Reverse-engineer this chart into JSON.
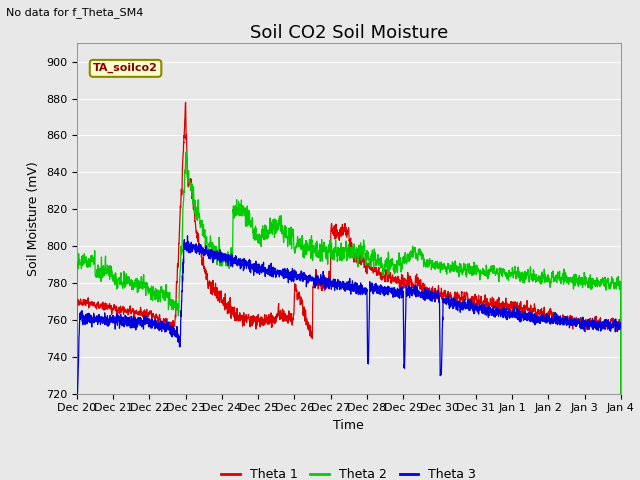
{
  "title": "Soil CO2 Soil Moisture",
  "top_left_note": "No data for f_Theta_SM4",
  "ylabel": "Soil Moisture (mV)",
  "xlabel": "Time",
  "ylim": [
    720,
    910
  ],
  "yticks": [
    720,
    740,
    760,
    780,
    800,
    820,
    840,
    860,
    880,
    900
  ],
  "xtick_labels": [
    "Dec 20",
    "Dec 21",
    "Dec 22",
    "Dec 23",
    "Dec 24",
    "Dec 25",
    "Dec 26",
    "Dec 27",
    "Dec 28",
    "Dec 29",
    "Dec 30",
    "Dec 31",
    "Jan 1",
    "Jan 2",
    "Jan 3",
    "Jan 4"
  ],
  "legend_box_label": "TA_soilco2",
  "legend_box_color": "#ffffcc",
  "legend_box_border": "#888800",
  "colors": {
    "theta1": "#dd0000",
    "theta2": "#00cc00",
    "theta3": "#0000dd"
  },
  "legend_labels": [
    "Theta 1",
    "Theta 2",
    "Theta 3"
  ],
  "plot_bg_color": "#e8e8e8",
  "grid_color": "#ffffff",
  "title_fontsize": 13,
  "label_fontsize": 9,
  "tick_fontsize": 8
}
